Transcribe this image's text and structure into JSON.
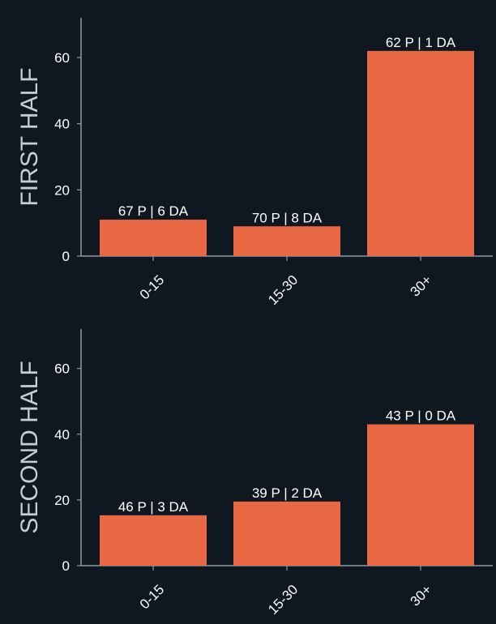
{
  "colors": {
    "background": "#0f1820",
    "bar": "#e96844",
    "axis": "#8e9aa2",
    "text": "#ffffff",
    "ylabel": "#c7cdd2"
  },
  "chart_data": [
    {
      "type": "bar",
      "ylabel": "FIRST HALF",
      "categories": [
        "0-15",
        "15-30",
        "30+"
      ],
      "values": [
        11,
        9,
        62
      ],
      "data_labels": [
        "67 P | 6 DA",
        "70 P | 8 DA",
        "62 P | 1 DA"
      ],
      "yticks": [
        0,
        20,
        40,
        60
      ],
      "ylim": [
        0,
        72
      ],
      "grid": false
    },
    {
      "type": "bar",
      "ylabel": "SECOND HALF",
      "categories": [
        "0-15",
        "15-30",
        "30+"
      ],
      "values": [
        15.33,
        19.5,
        43
      ],
      "data_labels": [
        "46 P | 3 DA",
        "39 P | 2 DA",
        "43 P | 0 DA"
      ],
      "yticks": [
        0,
        20,
        40,
        60
      ],
      "ylim": [
        0,
        72
      ],
      "grid": false
    }
  ]
}
